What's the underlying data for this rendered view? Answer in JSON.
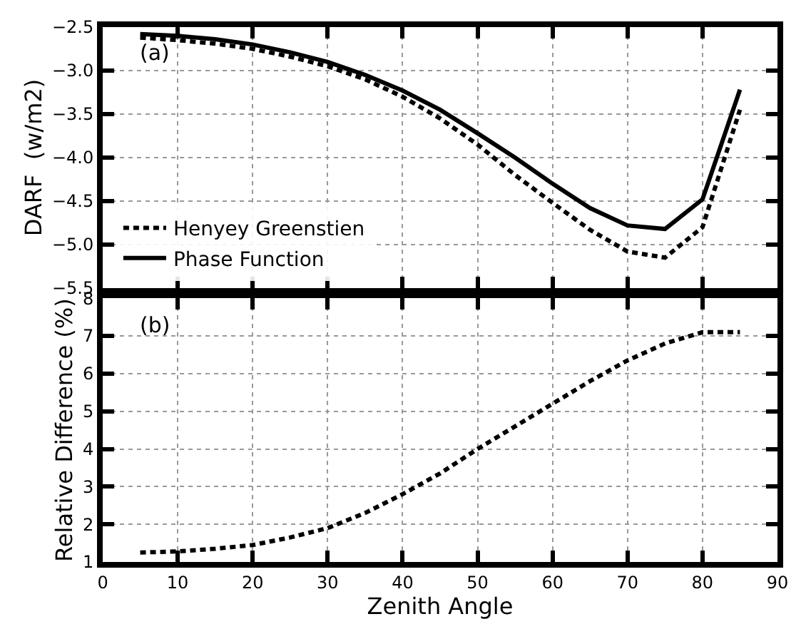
{
  "chart_data": [
    {
      "type": "line",
      "ylabel": "DARF  (w/m2)",
      "annotations": [
        "(a)"
      ],
      "x": [
        5,
        10,
        15,
        20,
        25,
        30,
        35,
        40,
        45,
        50,
        55,
        60,
        65,
        70,
        75,
        80,
        85
      ],
      "series": [
        {
          "name": "Henyey Greenstien",
          "color": "#000000",
          "line_style": "dashed",
          "values": [
            -2.62,
            -2.65,
            -2.69,
            -2.75,
            -2.84,
            -2.95,
            -3.1,
            -3.3,
            -3.55,
            -3.85,
            -4.2,
            -4.52,
            -4.83,
            -5.08,
            -5.15,
            -4.8,
            -3.45
          ]
        },
        {
          "name": "Phase Function",
          "color": "#000000",
          "line_style": "solid",
          "values": [
            -2.58,
            -2.6,
            -2.64,
            -2.7,
            -2.79,
            -2.9,
            -3.05,
            -3.23,
            -3.45,
            -3.72,
            -4.0,
            -4.3,
            -4.58,
            -4.78,
            -4.82,
            -4.48,
            -3.22
          ]
        }
      ],
      "xlim": [
        0,
        90
      ],
      "xticks": [
        0,
        10,
        20,
        30,
        40,
        50,
        60,
        70,
        80,
        90
      ],
      "ylim": [
        -5.5,
        -2.5
      ],
      "yticks": [
        -5.5,
        {
          "value": -5,
          "label": "−5.0"
        },
        -4.5,
        {
          "value": -4,
          "label": "−4.0"
        },
        -3.5,
        {
          "value": -3,
          "label": "−3.0"
        },
        -2.5
      ],
      "tick_labels": "y",
      "grid": true,
      "legend": "bottom left",
      "marker": "none"
    },
    {
      "type": "line",
      "xlabel": "Zenith Angle",
      "ylabel": "Relative Difference (%)",
      "annotations": [
        "(b)"
      ],
      "x": [
        5,
        10,
        15,
        20,
        25,
        30,
        35,
        40,
        45,
        50,
        55,
        60,
        65,
        70,
        75,
        80,
        85
      ],
      "series": [
        {
          "color": "#000000",
          "line_style": "dashed",
          "values": [
            1.25,
            1.28,
            1.35,
            1.45,
            1.65,
            1.9,
            2.3,
            2.8,
            3.35,
            4.0,
            4.6,
            5.2,
            5.8,
            6.35,
            6.8,
            7.1,
            7.1
          ]
        }
      ],
      "xlim": [
        0,
        90
      ],
      "xticks": [
        0,
        10,
        20,
        30,
        40,
        50,
        60,
        70,
        80,
        90
      ],
      "ylim": [
        1,
        8
      ],
      "yticks": [
        1,
        2,
        3,
        4,
        5,
        6,
        7,
        8
      ],
      "grid": true,
      "legend": false,
      "marker": "none"
    }
  ]
}
